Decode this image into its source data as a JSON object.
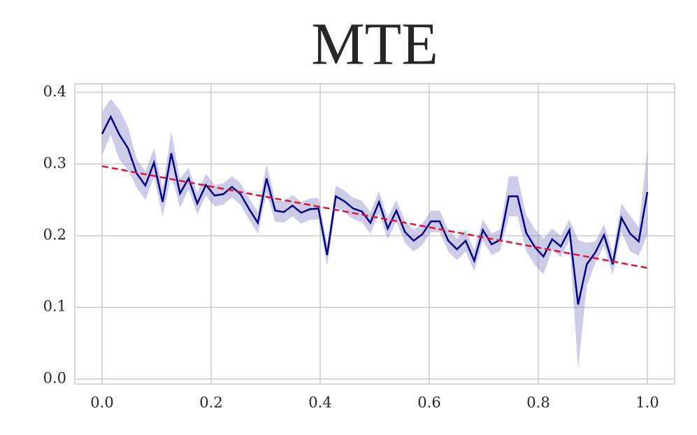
{
  "chart_data": {
    "type": "line",
    "title": "MTE",
    "x": [
      0,
      0.0159,
      0.0317,
      0.0476,
      0.0635,
      0.0794,
      0.0952,
      0.1111,
      0.127,
      0.1429,
      0.1587,
      0.1746,
      0.1905,
      0.2063,
      0.2222,
      0.2381,
      0.254,
      0.2698,
      0.2857,
      0.3016,
      0.3175,
      0.3333,
      0.3492,
      0.3651,
      0.381,
      0.3968,
      0.4127,
      0.4286,
      0.4444,
      0.4603,
      0.4762,
      0.4921,
      0.5079,
      0.5238,
      0.5397,
      0.5556,
      0.5714,
      0.5873,
      0.6032,
      0.619,
      0.6349,
      0.6508,
      0.6667,
      0.6825,
      0.6984,
      0.7143,
      0.7302,
      0.746,
      0.7619,
      0.7778,
      0.7937,
      0.8095,
      0.8254,
      0.8413,
      0.8571,
      0.873,
      0.8889,
      0.9048,
      0.9206,
      0.9365,
      0.9524,
      0.9683,
      0.9841,
      1
    ],
    "series": [
      {
        "color": "#00007f",
        "band_color": "#8080c8",
        "values": [
          0.342,
          0.366,
          0.341,
          0.322,
          0.287,
          0.27,
          0.302,
          0.247,
          0.315,
          0.259,
          0.28,
          0.245,
          0.271,
          0.256,
          0.258,
          0.268,
          0.258,
          0.237,
          0.218,
          0.28,
          0.235,
          0.233,
          0.242,
          0.232,
          0.237,
          0.238,
          0.173,
          0.255,
          0.248,
          0.238,
          0.234,
          0.218,
          0.247,
          0.21,
          0.235,
          0.205,
          0.193,
          0.202,
          0.22,
          0.22,
          0.193,
          0.181,
          0.193,
          0.165,
          0.208,
          0.188,
          0.194,
          0.255,
          0.255,
          0.204,
          0.184,
          0.171,
          0.195,
          0.185,
          0.208,
          0.104,
          0.16,
          0.177,
          0.201,
          0.16,
          0.225,
          0.203,
          0.192,
          0.261
        ],
        "errors": [
          0.03,
          0.025,
          0.035,
          0.03,
          0.02,
          0.02,
          0.02,
          0.02,
          0.03,
          0.02,
          0.015,
          0.015,
          0.015,
          0.015,
          0.015,
          0.015,
          0.015,
          0.015,
          0.015,
          0.02,
          0.015,
          0.015,
          0.015,
          0.015,
          0.015,
          0.015,
          0.015,
          0.015,
          0.015,
          0.015,
          0.015,
          0.015,
          0.015,
          0.015,
          0.015,
          0.015,
          0.015,
          0.015,
          0.015,
          0.015,
          0.015,
          0.015,
          0.015,
          0.015,
          0.015,
          0.015,
          0.015,
          0.028,
          0.028,
          0.025,
          0.025,
          0.025,
          0.015,
          0.015,
          0.015,
          0.09,
          0.03,
          0.015,
          0.015,
          0.015,
          0.02,
          0.025,
          0.02,
          0.06
        ]
      },
      {
        "color": "#dc143c",
        "dashed": true,
        "x": [
          0,
          1
        ],
        "values": [
          0.297,
          0.155
        ]
      }
    ],
    "xlim": [
      -0.05,
      1.05
    ],
    "ylim": [
      -0.007,
      0.412
    ],
    "xticks": [
      {
        "value": 0,
        "label": "0.0"
      },
      0.2,
      0.4,
      0.6,
      0.8,
      {
        "value": 1,
        "label": "1.0"
      }
    ],
    "yticks": [
      {
        "value": 0,
        "label": "0.0"
      },
      0.1,
      0.2,
      0.3,
      0.4
    ],
    "grid": true
  }
}
